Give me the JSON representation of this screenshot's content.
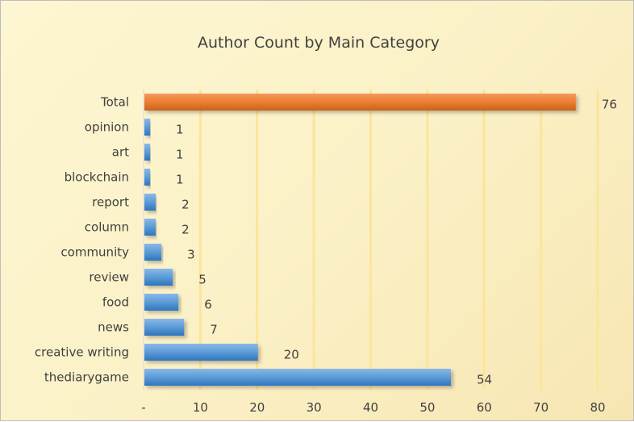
{
  "chart_data": {
    "type": "bar",
    "orientation": "horizontal",
    "title": "Author Count by Main Category",
    "categories": [
      "Total",
      "opinion",
      "art",
      "blockchain",
      "report",
      "column",
      "community",
      "review",
      "food",
      "news",
      "creative writing",
      "thediarygame"
    ],
    "values": [
      76,
      1,
      1,
      1,
      2,
      2,
      3,
      5,
      6,
      7,
      20,
      54
    ],
    "value_labels": [
      "76",
      "1",
      "1",
      "1",
      "2",
      "2",
      "3",
      "5",
      "6",
      "7",
      "20",
      "54"
    ],
    "xlim": [
      0,
      80
    ],
    "xticks": [
      "-",
      "10",
      "20",
      "30",
      "40",
      "50",
      "60",
      "70",
      "80"
    ],
    "grid": "vertical",
    "legend": "none",
    "colors": {
      "bar": "#5b9bd5",
      "highlight": "#ed7d31",
      "gridline": "#fbe59a",
      "text": "#404040",
      "background": "#fcf3cc"
    },
    "highlight_category": "Total"
  }
}
